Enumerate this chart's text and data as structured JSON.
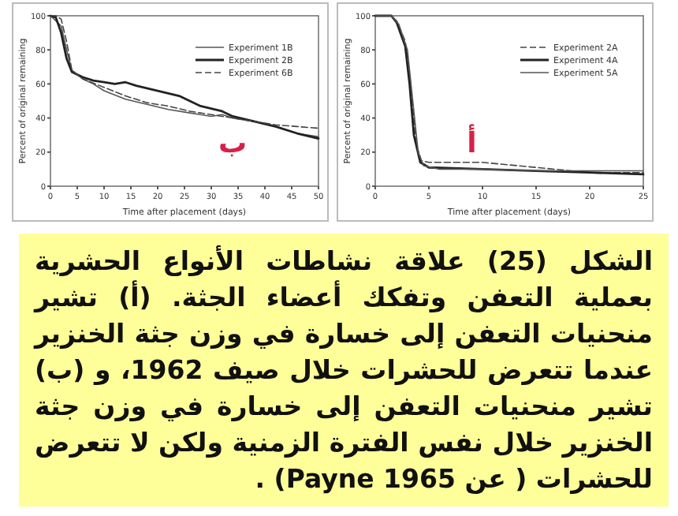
{
  "chart_data": [
    {
      "type": "line",
      "xlabel": "Time after placement (days)",
      "ylabel": "Percent of original remaining",
      "xlim": [
        0,
        50
      ],
      "ylim": [
        0,
        100
      ],
      "xticks": [
        0,
        5,
        10,
        15,
        20,
        25,
        30,
        35,
        40,
        45,
        50
      ],
      "yticks": [
        0,
        20,
        40,
        60,
        80,
        100
      ],
      "legend": "top right",
      "grid": false,
      "annotations": [
        "ب"
      ],
      "series": [
        {
          "name": "Experiment 1B",
          "color": "#555555",
          "line_style": "solid",
          "x": [
            0,
            1,
            2,
            3,
            4,
            6,
            8,
            10,
            14,
            18,
            22,
            26,
            30,
            32,
            34,
            38,
            42,
            46,
            50
          ],
          "values": [
            100,
            97,
            94,
            80,
            68,
            63,
            60,
            56,
            51,
            48,
            45,
            43,
            41,
            42,
            40,
            38,
            35,
            31,
            29
          ]
        },
        {
          "name": "Experiment 2B",
          "color": "#222222",
          "line_style": "solid",
          "x": [
            0,
            1,
            2,
            3,
            4,
            6,
            8,
            10,
            12,
            14,
            16,
            20,
            24,
            28,
            32,
            34,
            38,
            42,
            46,
            50
          ],
          "values": [
            100,
            99,
            90,
            75,
            67,
            64,
            62,
            61,
            60,
            61,
            59,
            56,
            53,
            47,
            44,
            41,
            38,
            35,
            31,
            28
          ]
        },
        {
          "name": "Experiment 6B",
          "color": "#444444",
          "line_style": "dashed",
          "x": [
            0,
            1,
            2,
            3,
            4,
            6,
            10,
            14,
            18,
            22,
            26,
            30,
            34,
            38,
            42,
            46,
            50
          ],
          "values": [
            100,
            100,
            98,
            85,
            68,
            63,
            58,
            53,
            49,
            47,
            44,
            42,
            40,
            38,
            36,
            35,
            34
          ]
        }
      ]
    },
    {
      "type": "line",
      "xlabel": "Time after placement (days)",
      "ylabel": "Percent of original remaining",
      "xlim": [
        0,
        25
      ],
      "ylim": [
        0,
        100
      ],
      "xticks": [
        0,
        5,
        10,
        15,
        20,
        25
      ],
      "yticks": [
        0,
        20,
        40,
        60,
        80,
        100
      ],
      "legend": "top right",
      "grid": false,
      "annotations": [
        "أ"
      ],
      "series": [
        {
          "name": "Experiment 2A",
          "color": "#444444",
          "line_style": "dashed",
          "x": [
            0,
            1.5,
            2,
            2.8,
            3.3,
            3.8,
            4.3,
            5,
            10,
            15,
            20,
            25
          ],
          "values": [
            100,
            100,
            97,
            85,
            60,
            25,
            15,
            14,
            14,
            11,
            8,
            8
          ]
        },
        {
          "name": "Experiment 4A",
          "color": "#222222",
          "line_style": "solid",
          "x": [
            0,
            1.5,
            2,
            2.8,
            3.2,
            3.6,
            4.2,
            5,
            10,
            15,
            20,
            25
          ],
          "values": [
            100,
            100,
            96,
            82,
            60,
            30,
            14,
            11,
            10,
            9,
            8,
            7
          ]
        },
        {
          "name": "Experiment 5A",
          "color": "#555555",
          "line_style": "solid",
          "x": [
            0,
            1.5,
            2.2,
            3,
            3.5,
            4,
            4.5,
            6,
            10,
            15,
            20,
            25
          ],
          "values": [
            100,
            100,
            95,
            80,
            50,
            20,
            12,
            10,
            10,
            9,
            9,
            9
          ]
        }
      ]
    },
    {
      "type": "other",
      "annotations": [
        "الشكل (25) علاقة نشاطات الأنواع الحشرية بعملية التعفن وتفكك أعضاء الجثة. (أ) تشير منحنيات التعفن إلى خسارة في وزن جثة الخنزير عندما تتعرض للحشرات خلال صيف 1962، و (ب) تشير منحنيات التعفن إلى خسارة في وزن جثة الخنزير خلال نفس الفترة الزمنية ولكن لا تتعرض للحشرات ( عن Payne 1965) ."
      ]
    }
  ]
}
